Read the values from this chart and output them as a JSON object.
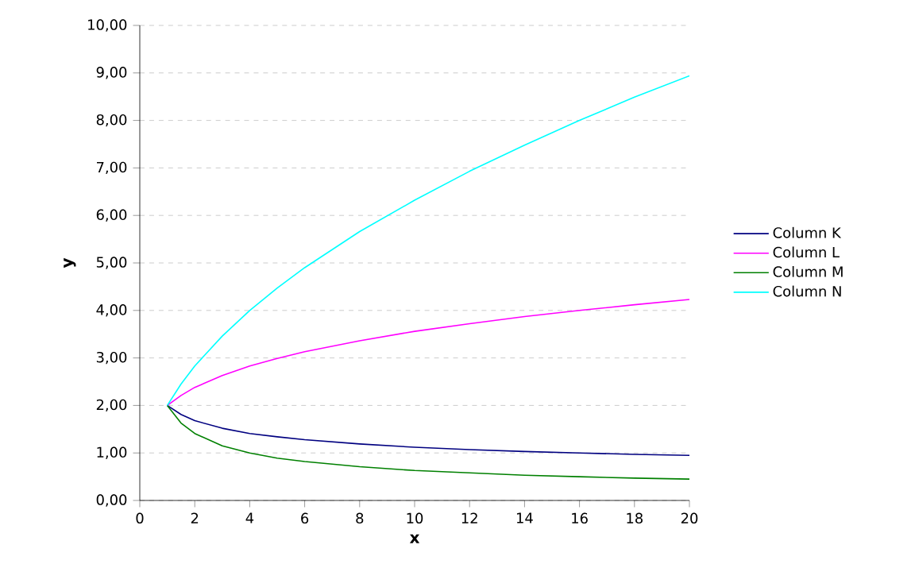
{
  "chart_data": {
    "type": "line",
    "xlabel": "x",
    "ylabel": "y",
    "xlim": [
      0,
      20
    ],
    "xticks": [
      0,
      2,
      4,
      6,
      8,
      10,
      12,
      14,
      16,
      18,
      20
    ],
    "ylim": [
      0,
      10
    ],
    "yticks": [
      {
        "value": 0,
        "label": "0,00"
      },
      {
        "value": 1,
        "label": "1,00"
      },
      {
        "value": 2,
        "label": "2,00"
      },
      {
        "value": 3,
        "label": "3,00"
      },
      {
        "value": 4,
        "label": "4,00"
      },
      {
        "value": 5,
        "label": "5,00"
      },
      {
        "value": 6,
        "label": "6,00"
      },
      {
        "value": 7,
        "label": "7,00"
      },
      {
        "value": 8,
        "label": "8,00"
      },
      {
        "value": 9,
        "label": "9,00"
      },
      {
        "value": 10,
        "label": "10,00"
      }
    ],
    "grid": "y",
    "legend": "right",
    "marker": "none",
    "x": [
      1,
      1.5,
      2,
      3,
      4,
      5,
      6,
      8,
      10,
      12,
      14,
      16,
      18,
      20
    ],
    "series": [
      {
        "name": "Column K",
        "color": "#000080",
        "values": [
          2,
          1.81,
          1.68,
          1.52,
          1.41,
          1.34,
          1.28,
          1.19,
          1.12,
          1.07,
          1.03,
          1.0,
          0.97,
          0.95
        ]
      },
      {
        "name": "Column L",
        "color": "#ff00ff",
        "values": [
          2,
          2.21,
          2.38,
          2.63,
          2.83,
          2.99,
          3.13,
          3.36,
          3.56,
          3.72,
          3.87,
          4.0,
          4.12,
          4.23
        ]
      },
      {
        "name": "Column M",
        "color": "#008000",
        "values": [
          2,
          1.63,
          1.41,
          1.15,
          1.0,
          0.89,
          0.82,
          0.71,
          0.63,
          0.58,
          0.53,
          0.5,
          0.47,
          0.45
        ]
      },
      {
        "name": "Column N",
        "color": "#00ffff",
        "values": [
          2,
          2.45,
          2.83,
          3.46,
          4.0,
          4.47,
          4.9,
          5.66,
          6.32,
          6.93,
          7.48,
          8.0,
          8.49,
          8.94
        ]
      }
    ]
  }
}
